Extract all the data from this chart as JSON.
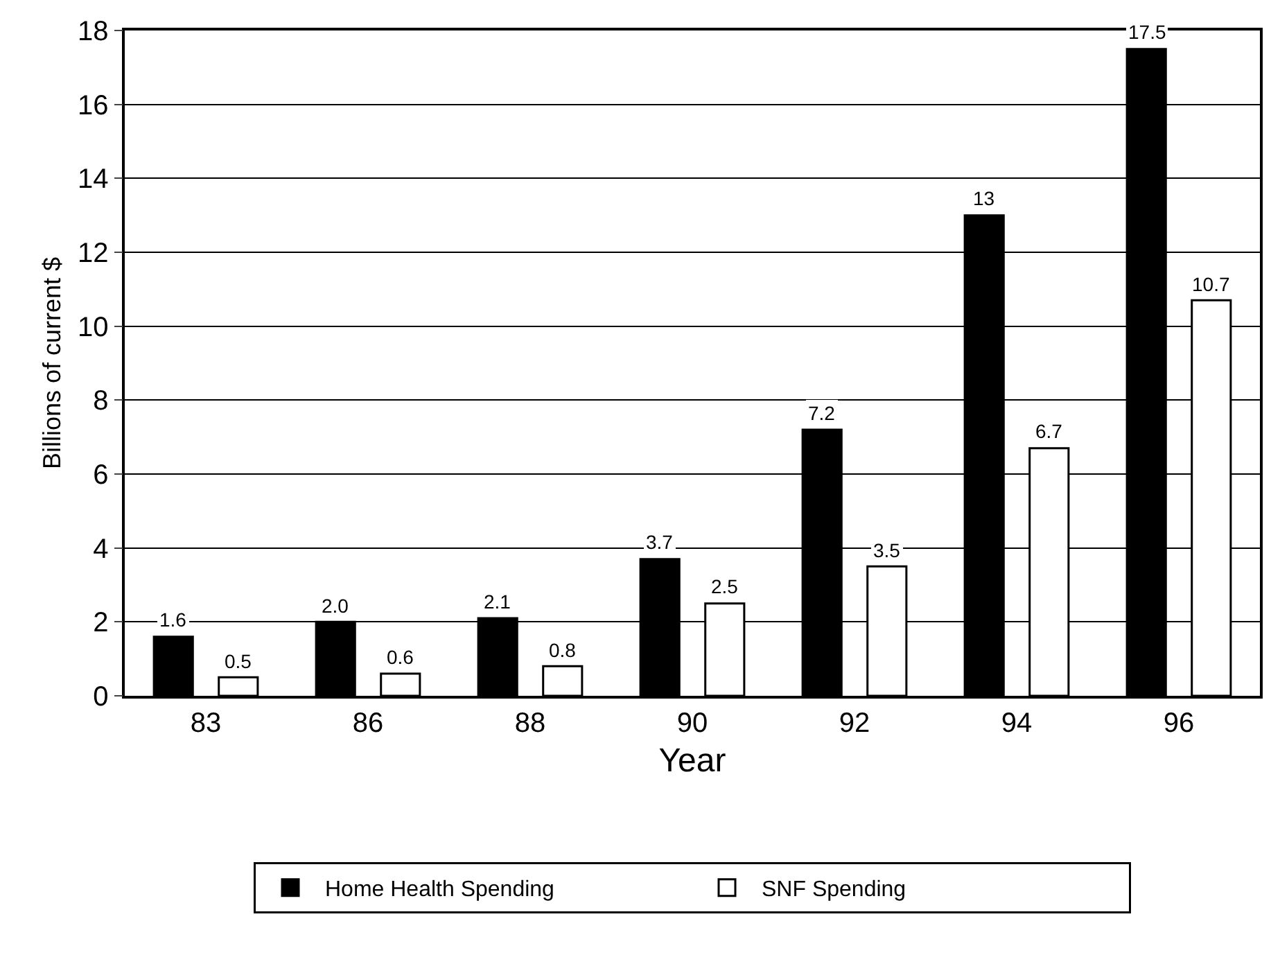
{
  "chart_data": {
    "type": "bar",
    "xlabel": "Year",
    "ylabel": "Billions of current $",
    "categories": [
      "83",
      "86",
      "88",
      "90",
      "92",
      "94",
      "96"
    ],
    "series": [
      {
        "name": "Home Health Spending",
        "color": "#000000",
        "values": [
          1.6,
          2.0,
          2.1,
          3.7,
          7.2,
          13,
          17.5
        ],
        "value_labels": [
          "1.6",
          "2.0",
          "2.1",
          "3.7",
          "7.2",
          "13",
          "17.5"
        ]
      },
      {
        "name": "SNF Spending",
        "color": "#ffffff",
        "values": [
          0.5,
          0.6,
          0.8,
          2.5,
          3.5,
          6.7,
          10.7
        ],
        "value_labels": [
          "0.5",
          "0.6",
          "0.8",
          "2.5",
          "3.5",
          "6.7",
          "10.7"
        ]
      }
    ],
    "ylim": [
      0,
      18
    ],
    "yticks": [
      0,
      2,
      4,
      6,
      8,
      10,
      12,
      14,
      16,
      18
    ],
    "grid": "y",
    "legend": "bottom"
  }
}
